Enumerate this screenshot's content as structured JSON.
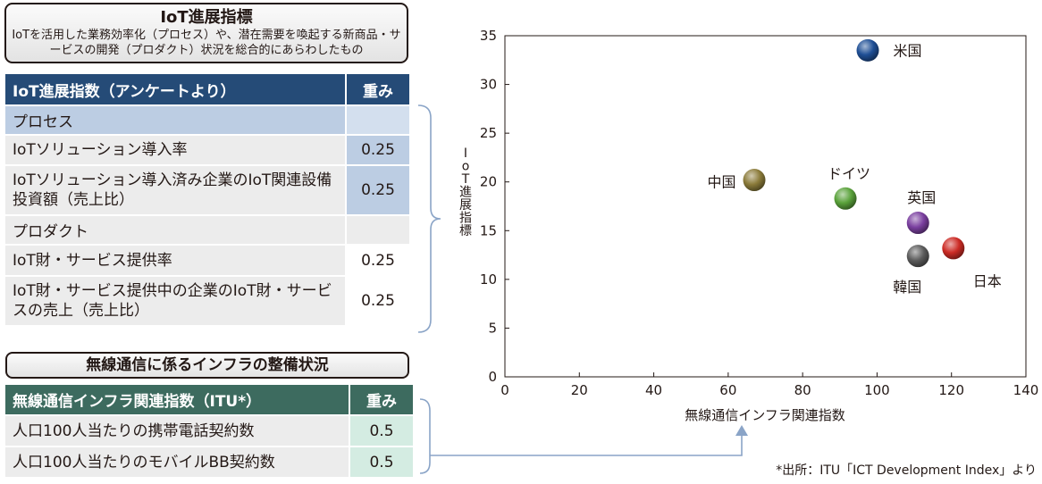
{
  "title_box": {
    "title": "IoT進展指標",
    "subtitle": "IoTを活用した業務効率化（プロセス）や、潜在需要を喚起する新商品・サービスの開発（プロダクト）状況を総合的にあらわしたもの"
  },
  "iot_table": {
    "header": "IoT進展指数（アンケートより）",
    "weight_header": "重み",
    "rows": [
      {
        "label": "プロセス",
        "weight": "",
        "kind": "sec"
      },
      {
        "label": "IoTソリューション導入率",
        "weight": "0.25",
        "kind": "row"
      },
      {
        "label": "IoTソリューション導入済み企業のIoT関連設備投資額（売上比）",
        "weight": "0.25",
        "kind": "row"
      },
      {
        "label": "プロダクト",
        "weight": "",
        "kind": "sec2"
      },
      {
        "label": "IoT財・サービス提供率",
        "weight": "0.25",
        "kind": "row"
      },
      {
        "label": "IoT財・サービス提供中の企業のIoT財・サービスの売上（売上比）",
        "weight": "0.25",
        "kind": "row"
      }
    ]
  },
  "infra_box": {
    "title": "無線通信に係るインフラの整備状況"
  },
  "infra_table": {
    "header": "無線通信インフラ関連指数（ITU*）",
    "weight_header": "重み",
    "rows": [
      {
        "label": "人口100人当たりの携帯電話契約数",
        "weight": "0.5"
      },
      {
        "label": "人口100人当たりのモバイルBB契約数",
        "weight": "0.5"
      }
    ]
  },
  "chart_data": {
    "type": "scatter",
    "xlabel": "無線通信インフラ関連指数",
    "ylabel": "IoT進展指標",
    "xlim": [
      0,
      140
    ],
    "ylim": [
      0,
      35
    ],
    "xticks": [
      "0",
      "20",
      "40",
      "60",
      "80",
      "100",
      "120",
      "140"
    ],
    "yticks": [
      "0",
      "5",
      "10",
      "15",
      "20",
      "25",
      "30",
      "35"
    ],
    "grid": false,
    "points": [
      {
        "name": "米国",
        "x": 97.5,
        "y": 33.5,
        "color": "#1f4f95",
        "label_pos": "right"
      },
      {
        "name": "中国",
        "x": 67,
        "y": 20.2,
        "color": "#8b7b3a",
        "label_pos": "left"
      },
      {
        "name": "ドイツ",
        "x": 91.5,
        "y": 18.3,
        "color": "#5aa23b",
        "label_pos": "top"
      },
      {
        "name": "英国",
        "x": 111,
        "y": 15.8,
        "color": "#7a3f9f",
        "label_pos": "top"
      },
      {
        "name": "日本",
        "x": 120.5,
        "y": 13.2,
        "color": "#cc2b25",
        "label_pos": "bottom-right"
      },
      {
        "name": "韓国",
        "x": 111,
        "y": 12.4,
        "color": "#5c5c5c",
        "label_pos": "bottom"
      }
    ]
  },
  "source_note": "*出所：ITU「ICT Development Index」より"
}
